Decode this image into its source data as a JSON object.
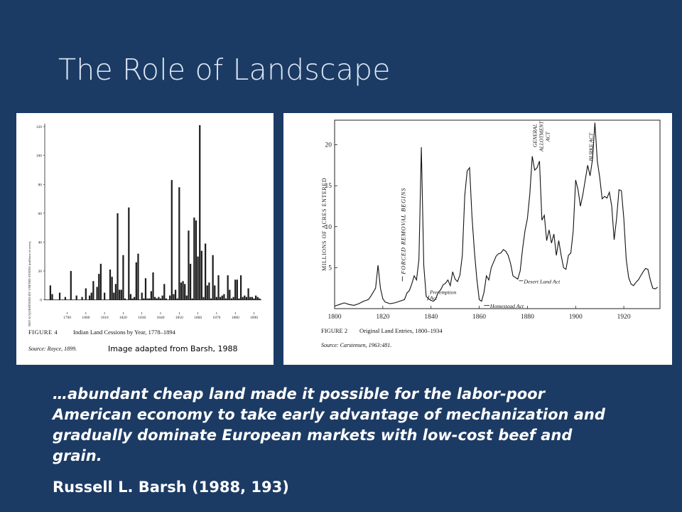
{
  "slide": {
    "title": "The Role of Landscape",
    "quote": "…abundant cheap land made it possible for the labor-poor American economy to take early advantage of mechanization and gradually dominate European markets with low-cost beef and grain.",
    "author": "Russell L. Barsh (1988, 193)",
    "image_credit": "Image adapted from Barsh, 1988"
  },
  "chart_data": [
    {
      "type": "bar",
      "figure_label": "FIGURE 4",
      "title": "Indian Land Cessions by Year, 1778–1894",
      "source": "Source: Royce, 1899.",
      "ylabel": "NET ACQUISITIONS BY UNITED STATES (millions of acres)",
      "xlim": [
        1778,
        1894
      ],
      "ylim": [
        -10,
        122
      ],
      "x_ticks": [
        "1790",
        "1800",
        "1810",
        "1820",
        "1830",
        "1840",
        "1850",
        "1860",
        "1870",
        "1880",
        "1890"
      ],
      "x_tick_values": [
        1790,
        1800,
        1810,
        1820,
        1830,
        1840,
        1850,
        1860,
        1870,
        1880,
        1890
      ],
      "y_ticks": [
        "0",
        "20",
        "40",
        "60",
        "80",
        "100",
        "120"
      ],
      "y_tick_values": [
        0,
        20,
        40,
        60,
        80,
        100,
        120
      ],
      "x": [
        1781,
        1782,
        1785,
        1786,
        1789,
        1790,
        1792,
        1795,
        1796,
        1798,
        1800,
        1801,
        1802,
        1803,
        1804,
        1805,
        1806,
        1807,
        1808,
        1810,
        1813,
        1814,
        1815,
        1816,
        1817,
        1818,
        1819,
        1820,
        1821,
        1823,
        1824,
        1825,
        1826,
        1827,
        1828,
        1829,
        1830,
        1831,
        1832,
        1833,
        1834,
        1835,
        1836,
        1837,
        1838,
        1839,
        1840,
        1841,
        1842,
        1843,
        1845,
        1846,
        1847,
        1848,
        1849,
        1850,
        1851,
        1852,
        1853,
        1854,
        1855,
        1856,
        1857,
        1858,
        1859,
        1860,
        1861,
        1862,
        1863,
        1864,
        1865,
        1866,
        1867,
        1868,
        1869,
        1870,
        1871,
        1872,
        1873,
        1874,
        1875,
        1876,
        1877,
        1878,
        1879,
        1880,
        1881,
        1882,
        1883,
        1884,
        1885,
        1886,
        1887,
        1888,
        1889,
        1890,
        1891,
        1892,
        1893
      ],
      "values": [
        10,
        4,
        0,
        5,
        2,
        0,
        20,
        3,
        0,
        2,
        8,
        0,
        3,
        5,
        13,
        0,
        9,
        18,
        25,
        5,
        21,
        16,
        5,
        11,
        60,
        7,
        7,
        31,
        1,
        64,
        4,
        1,
        2,
        26,
        32,
        0,
        5,
        1,
        15,
        1,
        1,
        6,
        19,
        2,
        1,
        2,
        1,
        3,
        11,
        1,
        3,
        83,
        4,
        7,
        1,
        78,
        12,
        13,
        11,
        3,
        48,
        25,
        1,
        57,
        55,
        30,
        121,
        34,
        2,
        39,
        10,
        12,
        1,
        31,
        10,
        2,
        17,
        2,
        3,
        4,
        1,
        17,
        7,
        1,
        2,
        14,
        14,
        1,
        17,
        2,
        3,
        2,
        8,
        2,
        2,
        1,
        3,
        2,
        1
      ]
    },
    {
      "type": "line",
      "figure_label": "FIGURE 2",
      "title": "Original Land Entries, 1800–1934",
      "source": "Source: Carstensen, 1963:481.",
      "ylabel": "MILLIONS OF ACRES ENTERED",
      "xlim": [
        1800,
        1935
      ],
      "ylim": [
        0,
        23
      ],
      "x_ticks": [
        "1800",
        "1820",
        "1840",
        "1860",
        "1880",
        "1900",
        "1920"
      ],
      "x_tick_values": [
        1800,
        1820,
        1840,
        1860,
        1880,
        1900,
        1920
      ],
      "y_ticks": [
        "5",
        "10",
        "15",
        "20"
      ],
      "y_tick_values": [
        5,
        10,
        15,
        20
      ],
      "x": [
        1800,
        1802,
        1804,
        1806,
        1808,
        1810,
        1812,
        1814,
        1815,
        1816,
        1817,
        1818,
        1819,
        1820,
        1821,
        1823,
        1825,
        1827,
        1829,
        1830,
        1831,
        1832,
        1833,
        1834,
        1835,
        1836,
        1837,
        1838,
        1839,
        1840,
        1841,
        1842,
        1843,
        1844,
        1845,
        1846,
        1847,
        1848,
        1849,
        1850,
        1851,
        1852,
        1853,
        1854,
        1855,
        1856,
        1857,
        1858,
        1859,
        1860,
        1861,
        1862,
        1863,
        1864,
        1865,
        1866,
        1867,
        1868,
        1869,
        1870,
        1871,
        1872,
        1873,
        1874,
        1875,
        1876,
        1877,
        1878,
        1879,
        1880,
        1881,
        1882,
        1883,
        1884,
        1885,
        1886,
        1887,
        1888,
        1889,
        1890,
        1891,
        1892,
        1893,
        1894,
        1895,
        1896,
        1897,
        1898,
        1899,
        1900,
        1901,
        1902,
        1903,
        1904,
        1905,
        1906,
        1907,
        1908,
        1909,
        1910,
        1911,
        1912,
        1913,
        1914,
        1915,
        1916,
        1917,
        1918,
        1919,
        1920,
        1921,
        1922,
        1923,
        1924,
        1925,
        1926,
        1927,
        1928,
        1929,
        1930,
        1931,
        1932,
        1933,
        1934
      ],
      "values": [
        0.3,
        0.5,
        0.7,
        0.5,
        0.4,
        0.6,
        0.9,
        1.1,
        1.5,
        2.0,
        2.5,
        5.3,
        2.5,
        1.2,
        0.8,
        0.6,
        0.7,
        0.9,
        1.1,
        1.9,
        2.2,
        3.0,
        4.0,
        3.5,
        6.0,
        19.7,
        5.3,
        1.5,
        1.2,
        1.0,
        0.9,
        1.2,
        2.0,
        2.3,
        2.9,
        3.1,
        3.5,
        2.8,
        4.5,
        3.6,
        3.3,
        4.1,
        6.5,
        13.8,
        16.8,
        17.2,
        11.2,
        7.0,
        3.6,
        1.1,
        0.9,
        2.0,
        4.0,
        3.5,
        5.0,
        5.7,
        6.4,
        6.7,
        6.8,
        7.2,
        7.0,
        6.5,
        5.5,
        4.0,
        3.8,
        3.6,
        4.6,
        7.3,
        9.5,
        11.0,
        14.0,
        18.6,
        16.9,
        17.2,
        18.0,
        10.8,
        11.4,
        8.3,
        9.6,
        8.0,
        9.1,
        6.5,
        8.3,
        6.5,
        5.0,
        4.8,
        6.5,
        6.8,
        9.5,
        15.7,
        14.5,
        12.5,
        13.9,
        15.7,
        17.5,
        16.2,
        18.2,
        22.7,
        18.0,
        16.0,
        13.4,
        13.7,
        13.5,
        14.2,
        12.5,
        8.4,
        11.0,
        14.5,
        14.4,
        11.0,
        6.0,
        3.8,
        3.0,
        2.8,
        3.2,
        3.5,
        4.0,
        4.5,
        4.9,
        4.8,
        3.5,
        2.5,
        2.4,
        2.6
      ],
      "annotations": [
        {
          "text": "FORCED REMOVAL BEGINS",
          "year": 1834
        },
        {
          "text": "Pre-emption",
          "text2": "Act",
          "year": 1841
        },
        {
          "text": "Homestead Act",
          "year": 1862
        },
        {
          "text": "Desert Land Act",
          "year": 1877
        },
        {
          "text": "GENERAL",
          "text2": "ALLOTMENT",
          "text3": "ACT",
          "year": 1887
        },
        {
          "text": "BURKE ACT",
          "year": 1906
        }
      ]
    }
  ]
}
